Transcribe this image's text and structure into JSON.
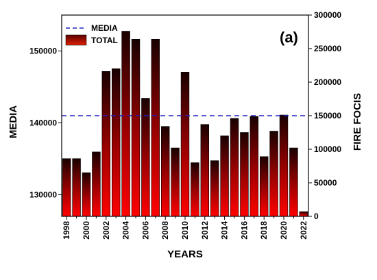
{
  "panel_label": "(a)",
  "legend": {
    "media_label": "MEDIA",
    "total_label": "TOTAL"
  },
  "colors": {
    "bar_top": "#1a0000",
    "bar_bottom": "#ff0000",
    "media_line": "#2020c0",
    "axis": "#000000"
  },
  "chart_data": {
    "type": "bar",
    "xlabel": "YEARS",
    "ylabel": "MEDIA",
    "y2label": "FIRE FOCIS",
    "legend_position": "top-left",
    "grid": false,
    "categories": [
      "1998",
      "1999",
      "2000",
      "2001",
      "2002",
      "2003",
      "2004",
      "2005",
      "2006",
      "2007",
      "2008",
      "2009",
      "2010",
      "2011",
      "2012",
      "2013",
      "2014",
      "2015",
      "2016",
      "2017",
      "2018",
      "2019",
      "2020",
      "2021",
      "2022"
    ],
    "x_tick_labels": [
      "1998",
      "2000",
      "2002",
      "2004",
      "2006",
      "2008",
      "2010",
      "2012",
      "2014",
      "2016",
      "2018",
      "2020",
      "2022"
    ],
    "series": [
      {
        "name": "TOTAL",
        "axis": "right",
        "values": [
          86000,
          86000,
          65000,
          96000,
          216000,
          220000,
          276000,
          264000,
          176000,
          264000,
          134000,
          102000,
          215000,
          80000,
          137000,
          83000,
          120000,
          146000,
          125000,
          149000,
          89000,
          127000,
          151000,
          102000,
          7000
        ]
      },
      {
        "name": "MEDIA",
        "axis": "left",
        "style": "dashed",
        "value": 141000
      }
    ],
    "ylim": [
      127000,
      155000
    ],
    "y_ticks": [
      130000,
      140000,
      150000
    ],
    "y2lim": [
      0,
      300000
    ],
    "y2_ticks": [
      0,
      50000,
      100000,
      150000,
      200000,
      250000,
      300000
    ]
  }
}
